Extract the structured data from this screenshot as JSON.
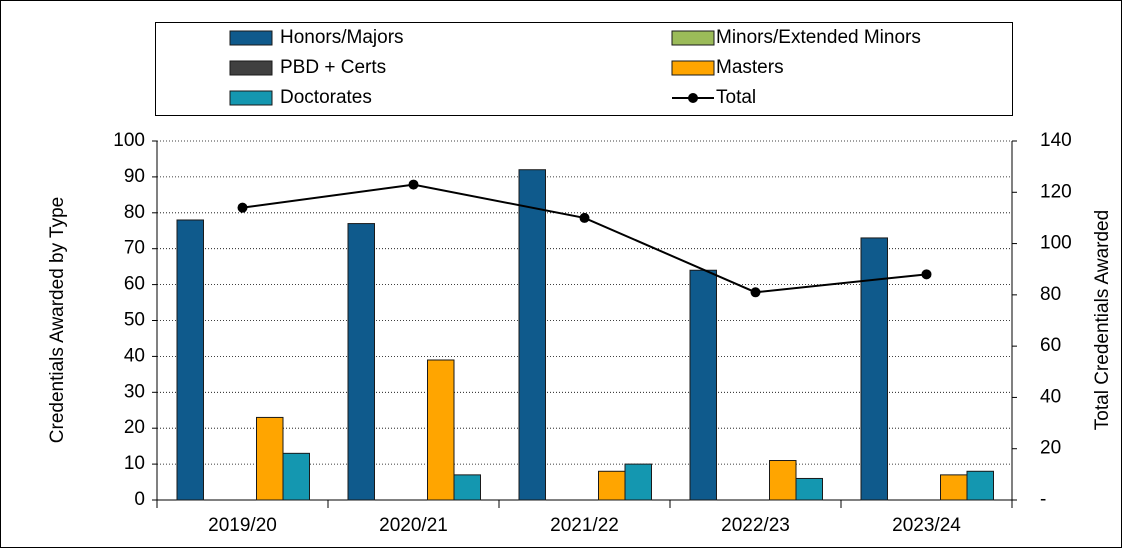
{
  "chart_data": {
    "type": "bar",
    "categories": [
      "2019/20",
      "2020/21",
      "2021/22",
      "2022/23",
      "2023/24"
    ],
    "series": [
      {
        "name": "Honors/Majors",
        "color": "#0f5a8c",
        "values": [
          78,
          77,
          92,
          64,
          73
        ]
      },
      {
        "name": "Minors/Extended Minors",
        "color": "#9bbb59",
        "values": [
          0,
          0,
          0,
          0,
          0
        ]
      },
      {
        "name": "PBD + Certs",
        "color": "#404040",
        "values": [
          0,
          0,
          0,
          0,
          0
        ]
      },
      {
        "name": "Masters",
        "color": "#ffa500",
        "values": [
          23,
          39,
          8,
          11,
          7
        ]
      },
      {
        "name": "Doctorates",
        "color": "#1497b0",
        "values": [
          13,
          7,
          10,
          6,
          8
        ]
      },
      {
        "name": "Total",
        "color": "#000000",
        "type": "line",
        "axis": "y2",
        "values": [
          114,
          123,
          110,
          81,
          88
        ]
      }
    ],
    "y_label": "Credentials Awarded by Type",
    "y2_label": "Total Credentials Awarded",
    "ylim": [
      0,
      100
    ],
    "yticks": [
      0,
      10,
      20,
      30,
      40,
      50,
      60,
      70,
      80,
      90,
      100
    ],
    "y2lim": [
      0,
      140
    ],
    "y2ticks": [
      {
        "value": 0,
        "label": "-"
      },
      20,
      40,
      60,
      80,
      100,
      120,
      140
    ],
    "grid": true,
    "legend": "top"
  }
}
